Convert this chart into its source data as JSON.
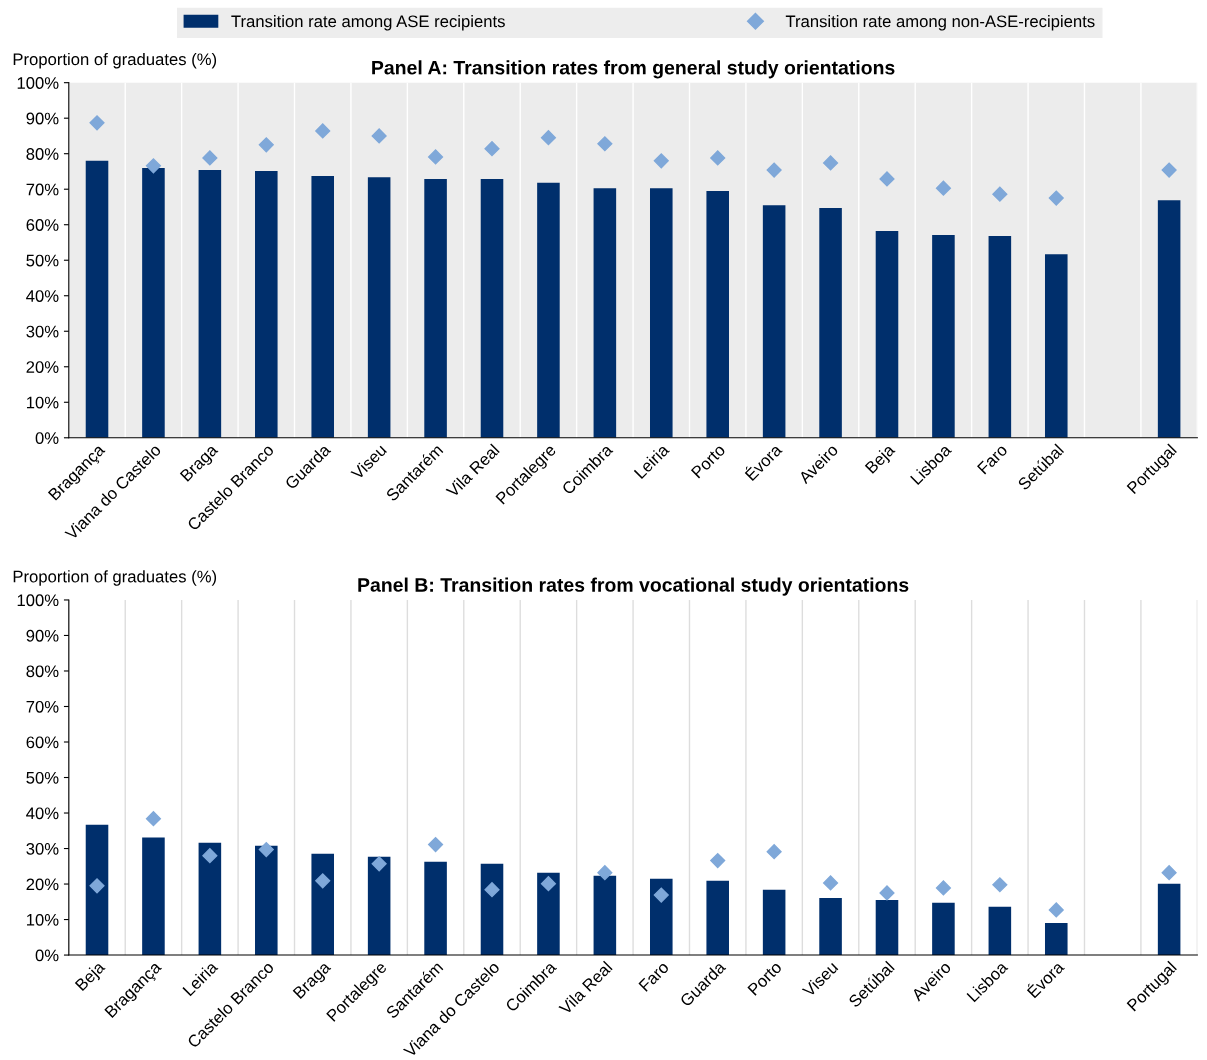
{
  "chart_data": [
    {
      "type": "bar",
      "title": "Panel A: Transition rates from general study orientations",
      "ylabel": "Proportion of graduates (%)",
      "categories": [
        "Bragança",
        "Viana do Castelo",
        "Braga",
        "Castelo Branco",
        "Guarda",
        "Viseu",
        "Santarém",
        "Vila Real",
        "Portalegre",
        "Coimbra",
        "Leiria",
        "Porto",
        "Évora",
        "Aveiro",
        "Beja",
        "Lisboa",
        "Faro",
        "Setúbal",
        null,
        "Portugal"
      ],
      "ylim": [
        0,
        100
      ],
      "yticks": [
        {
          "value": 0,
          "label": "0%"
        },
        {
          "value": 10,
          "label": "10%"
        },
        {
          "value": 20,
          "label": "20%"
        },
        {
          "value": 30,
          "label": "30%"
        },
        {
          "value": 40,
          "label": "40%"
        },
        {
          "value": 50,
          "label": "50%"
        },
        {
          "value": 60,
          "label": "60%"
        },
        {
          "value": 70,
          "label": "70%"
        },
        {
          "value": 80,
          "label": "80%"
        },
        {
          "value": 90,
          "label": "90%"
        },
        {
          "value": 100,
          "label": "100%"
        }
      ],
      "legend": "top",
      "marker": "diamond",
      "series": [
        {
          "name": "Transition rate among ASE recipients",
          "color": "#002f6c",
          "values": [
            78.0,
            76.0,
            75.4,
            75.1,
            73.7,
            73.4,
            72.9,
            72.9,
            71.8,
            70.3,
            70.3,
            69.5,
            65.5,
            64.7,
            58.2,
            57.1,
            56.8,
            51.7,
            null,
            66.9
          ]
        },
        {
          "name": "Transition rate among non-ASE-recipients",
          "type": "scatter",
          "color": "#7fa8d9",
          "values": [
            88.7,
            76.6,
            78.8,
            82.5,
            86.4,
            85.0,
            79.1,
            81.4,
            84.5,
            82.8,
            78.0,
            78.8,
            75.4,
            77.4,
            72.9,
            70.3,
            68.6,
            67.5,
            null,
            75.4
          ]
        }
      ]
    },
    {
      "type": "bar",
      "title": "Panel B: Transition rates from vocational study orientations",
      "ylabel": "Proportion of graduates (%)",
      "categories": [
        "Beja",
        "Bragança",
        "Leiria",
        "Castelo Branco",
        "Braga",
        "Portalegre",
        "Santarém",
        "Viana do Castelo",
        "Coimbra",
        "Vila Real",
        "Faro",
        "Guarda",
        "Porto",
        "Viseu",
        "Setúbal",
        "Aveiro",
        "Lisboa",
        "Évora",
        null,
        "Portugal"
      ],
      "ylim": [
        0,
        100
      ],
      "yticks": [
        {
          "value": 0,
          "label": "0%"
        },
        {
          "value": 10,
          "label": "10%"
        },
        {
          "value": 20,
          "label": "20%"
        },
        {
          "value": 30,
          "label": "30%"
        },
        {
          "value": 40,
          "label": "40%"
        },
        {
          "value": 50,
          "label": "50%"
        },
        {
          "value": 60,
          "label": "60%"
        },
        {
          "value": 70,
          "label": "70%"
        },
        {
          "value": 80,
          "label": "80%"
        },
        {
          "value": 90,
          "label": "90%"
        },
        {
          "value": 100,
          "label": "100%"
        }
      ],
      "marker": "diamond",
      "series": [
        {
          "color": "#002f6c",
          "values": [
            36.7,
            33.1,
            31.6,
            30.8,
            28.5,
            27.7,
            26.3,
            25.7,
            23.2,
            22.3,
            21.5,
            20.9,
            18.4,
            16.1,
            15.5,
            14.7,
            13.6,
            9.0,
            null,
            20.1
          ]
        },
        {
          "type": "scatter",
          "color": "#7fa8d9",
          "values": [
            19.5,
            38.4,
            28.0,
            29.7,
            20.9,
            25.7,
            31.1,
            18.4,
            20.1,
            23.2,
            16.9,
            26.6,
            29.1,
            20.3,
            17.5,
            18.9,
            19.8,
            12.7,
            null,
            23.2
          ]
        }
      ]
    }
  ]
}
